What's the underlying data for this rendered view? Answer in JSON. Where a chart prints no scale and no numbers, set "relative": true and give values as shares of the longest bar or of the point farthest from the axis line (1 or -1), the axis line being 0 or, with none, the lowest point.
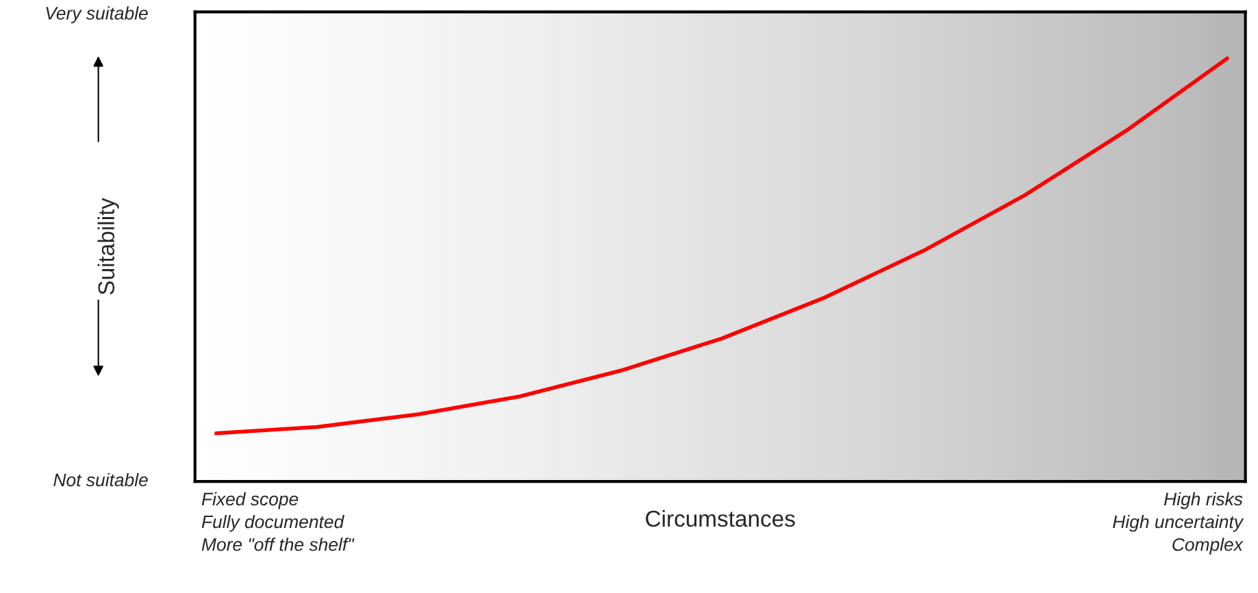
{
  "chart_data": {
    "type": "line",
    "relative": true,
    "xlabel": "Circumstances",
    "ylabel": "Suitability",
    "categories": [
      null,
      null,
      null,
      null,
      null,
      null,
      null,
      null,
      null,
      null,
      null
    ],
    "series": [
      {
        "color": "#ff0000",
        "values": [
          0.114,
          0.129,
          0.159,
          0.201,
          0.262,
          0.338,
          0.433,
          0.546,
          0.677,
          0.829,
          1.0
        ]
      }
    ],
    "annotations": [
      "Very suitable",
      "Not suitable",
      "Fixed scope\nFully documented\nMore \"off the shelf\"",
      "High risks\nHigh uncertainty\nComplex"
    ],
    "legend": false
  }
}
